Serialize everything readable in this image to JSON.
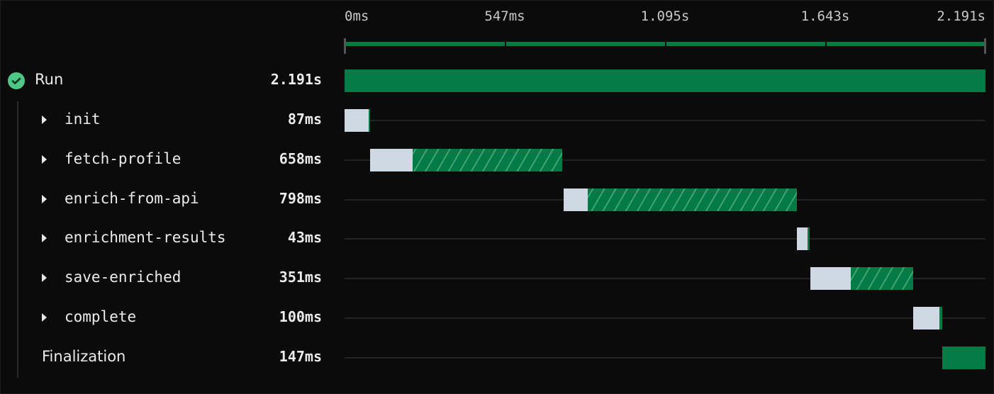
{
  "timeline": {
    "total_ms": 2191,
    "tick_labels": [
      "0ms",
      "547ms",
      "1.095s",
      "1.643s",
      "2.191s"
    ],
    "colors": {
      "success": "#047a45",
      "pending": "#cfd9e4",
      "status_ok": "#4fc786"
    }
  },
  "run": {
    "label": "Run",
    "duration": "2.191s",
    "status_icon": "check-circle-icon",
    "start_ms": 0,
    "duration_ms": 2191
  },
  "spans": [
    {
      "label": "init",
      "duration": "87ms",
      "start_ms": 0,
      "pending_ms": 82,
      "duration_ms": 87,
      "style": "solid",
      "expandable": true
    },
    {
      "label": "fetch-profile",
      "duration": "658ms",
      "start_ms": 87,
      "pending_ms": 146,
      "duration_ms": 658,
      "style": "hatched",
      "expandable": true
    },
    {
      "label": "enrich-from-api",
      "duration": "798ms",
      "start_ms": 749,
      "pending_ms": 82,
      "duration_ms": 798,
      "style": "hatched",
      "expandable": true
    },
    {
      "label": "enrichment-results",
      "duration": "43ms",
      "start_ms": 1547,
      "pending_ms": 36,
      "duration_ms": 43,
      "style": "solid",
      "expandable": true
    },
    {
      "label": "save-enriched",
      "duration": "351ms",
      "start_ms": 1592,
      "pending_ms": 138,
      "duration_ms": 351,
      "style": "hatched",
      "expandable": true
    },
    {
      "label": "complete",
      "duration": "100ms",
      "start_ms": 1944,
      "pending_ms": 90,
      "duration_ms": 100,
      "style": "solid",
      "expandable": true
    },
    {
      "label": "Finalization",
      "duration": "147ms",
      "start_ms": 2044,
      "pending_ms": 0,
      "duration_ms": 147,
      "style": "solid",
      "expandable": false
    }
  ]
}
